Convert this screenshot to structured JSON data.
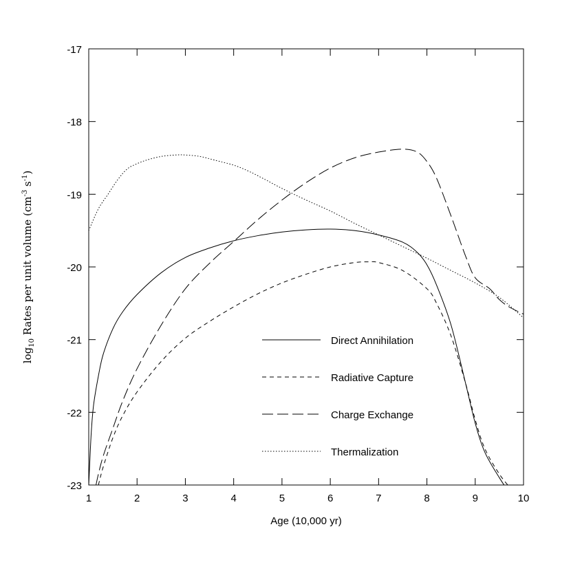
{
  "chart_data": {
    "type": "line",
    "title": "",
    "xlabel": "Age (10,000 yr)",
    "ylabel": {
      "prefix": "log",
      "prefix_sub": "10",
      "main": " Rates per unit volume (cm",
      "exp1": "-3",
      "mid": " s",
      "exp2": "-1",
      "suffix": ")"
    },
    "xlim": [
      1,
      10
    ],
    "ylim": [
      -23,
      -17
    ],
    "xticks": [
      1,
      2,
      3,
      4,
      5,
      6,
      7,
      8,
      9,
      10
    ],
    "yticks": [
      -23,
      -22,
      -21,
      -20,
      -19,
      -18,
      -17
    ],
    "xtick_labels": [
      "1",
      "2",
      "3",
      "4",
      "5",
      "6",
      "7",
      "8",
      "9",
      "10"
    ],
    "ytick_labels": [
      "-23",
      "-22",
      "-21",
      "-20",
      "-19",
      "-18",
      "-17"
    ],
    "grid": false,
    "legend_position": "bottom-right",
    "series": [
      {
        "name": "Direct Annihilation",
        "dash": "solid",
        "x": [
          1.0,
          1.05,
          1.1,
          1.2,
          1.3,
          1.5,
          1.7,
          2.0,
          2.5,
          3.0,
          3.5,
          4.0,
          4.5,
          5.0,
          5.5,
          6.0,
          6.5,
          7.0,
          7.5,
          7.8,
          8.0,
          8.2,
          8.5,
          8.8,
          9.0,
          9.2,
          9.5,
          9.8,
          9.9
        ],
        "y": [
          -23.0,
          -22.3,
          -21.9,
          -21.5,
          -21.2,
          -20.85,
          -20.62,
          -20.38,
          -20.08,
          -19.87,
          -19.74,
          -19.64,
          -19.57,
          -19.52,
          -19.49,
          -19.48,
          -19.5,
          -19.56,
          -19.66,
          -19.8,
          -19.97,
          -20.25,
          -20.8,
          -21.6,
          -22.15,
          -22.55,
          -22.9,
          -23.2,
          -23.3
        ]
      },
      {
        "name": "Radiative Capture",
        "dash": "short-dash",
        "x": [
          1.2,
          1.3,
          1.5,
          1.7,
          2.0,
          2.5,
          3.0,
          3.5,
          4.0,
          4.5,
          5.0,
          5.5,
          6.0,
          6.5,
          6.8,
          7.0,
          7.5,
          8.0,
          8.2,
          8.5,
          8.8,
          9.0,
          9.2,
          9.5,
          9.8
        ],
        "y": [
          -23.0,
          -22.75,
          -22.35,
          -22.05,
          -21.72,
          -21.3,
          -20.98,
          -20.75,
          -20.55,
          -20.37,
          -20.22,
          -20.1,
          -20.0,
          -19.94,
          -19.93,
          -19.94,
          -20.05,
          -20.3,
          -20.5,
          -20.95,
          -21.6,
          -22.1,
          -22.5,
          -22.85,
          -23.1
        ]
      },
      {
        "name": "Charge Exchange",
        "dash": "long-dash",
        "x": [
          1.15,
          1.2,
          1.3,
          1.5,
          1.7,
          2.0,
          2.5,
          3.0,
          3.5,
          4.0,
          4.5,
          5.0,
          5.5,
          6.0,
          6.5,
          7.0,
          7.5,
          7.8,
          8.0,
          8.2,
          8.5,
          8.8,
          9.0,
          9.3,
          9.5,
          9.7,
          10.0
        ],
        "y": [
          -23.0,
          -22.85,
          -22.6,
          -22.22,
          -21.85,
          -21.4,
          -20.8,
          -20.3,
          -19.95,
          -19.65,
          -19.35,
          -19.08,
          -18.84,
          -18.64,
          -18.5,
          -18.42,
          -18.38,
          -18.42,
          -18.55,
          -18.78,
          -19.3,
          -19.85,
          -20.15,
          -20.3,
          -20.45,
          -20.55,
          -20.65
        ]
      },
      {
        "name": "Thermalization",
        "dash": "dotted",
        "x": [
          1.0,
          1.2,
          1.4,
          1.6,
          1.8,
          2.0,
          2.2,
          2.5,
          2.8,
          3.0,
          3.3,
          3.6,
          4.0,
          4.3,
          4.6,
          5.0,
          5.5,
          6.0,
          6.5,
          7.0,
          7.5,
          8.0,
          8.5,
          9.0,
          9.5,
          10.0
        ],
        "y": [
          -19.5,
          -19.2,
          -19.0,
          -18.8,
          -18.65,
          -18.58,
          -18.53,
          -18.48,
          -18.46,
          -18.46,
          -18.48,
          -18.53,
          -18.6,
          -18.68,
          -18.78,
          -18.92,
          -19.08,
          -19.23,
          -19.4,
          -19.56,
          -19.72,
          -19.88,
          -20.05,
          -20.22,
          -20.42,
          -20.7
        ]
      }
    ]
  }
}
